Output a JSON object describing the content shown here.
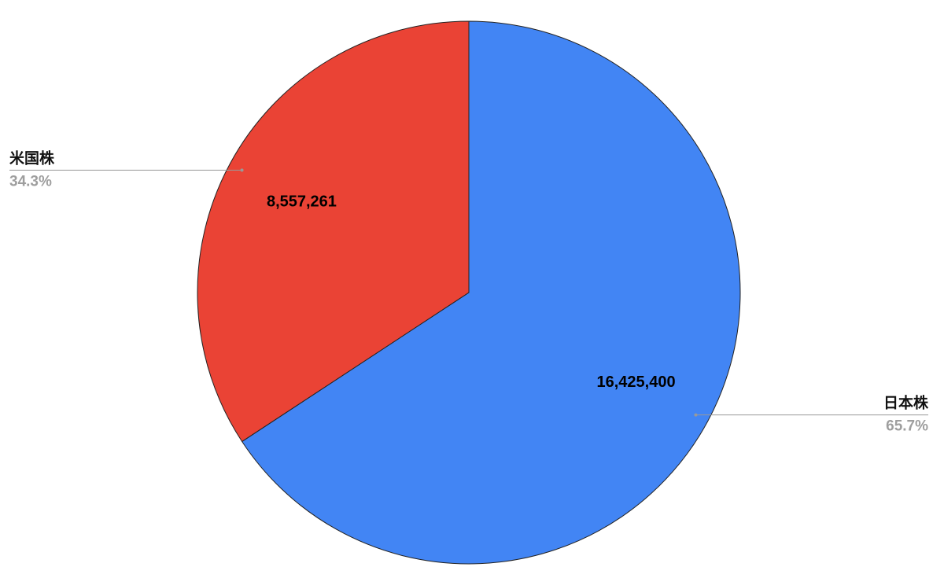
{
  "chart_data": {
    "type": "pie",
    "categories": [
      "日本株",
      "米国株"
    ],
    "values": [
      16425400,
      8557261
    ],
    "value_labels": [
      "16,425,400",
      "8,557,261"
    ],
    "percent_labels": [
      "65.7%",
      "34.3%"
    ],
    "colors": [
      "#4285f4",
      "#ea4335"
    ]
  }
}
